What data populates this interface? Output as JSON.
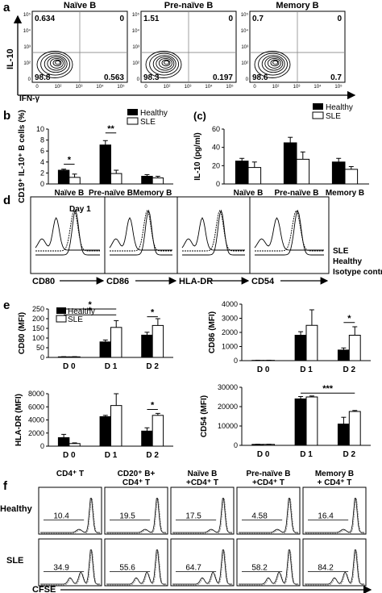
{
  "panel_letters": {
    "a": "a",
    "b": "b",
    "c": "(c)",
    "d": "d",
    "e": "e",
    "f": "f"
  },
  "panel_a": {
    "titles": [
      "Naïve B",
      "Pre-naïve B",
      "Memory B"
    ],
    "quadrants": [
      {
        "ul": "0.634",
        "ur": "0",
        "ll": "98.8",
        "lr": "0.563"
      },
      {
        "ul": "1.51",
        "ur": "0",
        "ll": "98.3",
        "lr": "0.197"
      },
      {
        "ul": "0.7",
        "ur": "0",
        "ll": "98.6",
        "lr": "0.7"
      }
    ],
    "y_label": "IL-10",
    "x_label": "IFN-γ",
    "y_ticks": [
      "10⁵",
      "10⁴",
      "10³",
      "10²",
      "0"
    ],
    "x_ticks": [
      "0",
      "10²",
      "10³",
      "10⁴",
      "10⁵"
    ]
  },
  "chart_data": [
    {
      "type": "bar",
      "panel": "b",
      "ylabel": "CD19⁺ IL-10⁺ B cells (%)",
      "categories": [
        "Naïve B",
        "Pre-naïve B",
        "Memory B"
      ],
      "ylim": [
        0,
        10
      ],
      "yticks": [
        "0",
        "2",
        "4",
        "6",
        "8",
        "10"
      ],
      "series": [
        {
          "name": "Healthy",
          "values": [
            2.5,
            7.1,
            1.4
          ],
          "errors": [
            0.2,
            0.8,
            0.3
          ],
          "color": "#000000"
        },
        {
          "name": "SLE",
          "values": [
            1.2,
            1.9,
            1.1
          ],
          "errors": [
            0.6,
            0.6,
            0.3
          ],
          "color": "#ffffff"
        }
      ],
      "significance": [
        "*",
        "**"
      ]
    },
    {
      "type": "bar",
      "panel": "c",
      "ylabel": "IL-10 (pg/ml)",
      "categories": [
        "Naïve B",
        "Pre-naïve B",
        "Memory B"
      ],
      "ylim": [
        0,
        60
      ],
      "yticks": [
        "0",
        "20",
        "40",
        "60"
      ],
      "series": [
        {
          "name": "Healthy",
          "values": [
            25,
            45,
            24
          ],
          "errors": [
            3,
            6,
            4
          ],
          "color": "#000000"
        },
        {
          "name": "SLE",
          "values": [
            18,
            27,
            16
          ],
          "errors": [
            6,
            8,
            3
          ],
          "color": "#ffffff"
        }
      ]
    },
    {
      "type": "bar",
      "panel": "e1",
      "ylabel": "CD80 (MFI)",
      "categories": [
        "D 0",
        "D 1",
        "D 2"
      ],
      "ylim": [
        0,
        250
      ],
      "yticks": [
        "0",
        "50",
        "100",
        "150",
        "200",
        "250"
      ],
      "series": [
        {
          "name": "Healthy",
          "values": [
            3,
            80,
            115
          ],
          "errors": [
            1,
            10,
            15
          ],
          "color": "#000000"
        },
        {
          "name": "SLE",
          "values": [
            3,
            155,
            165
          ],
          "errors": [
            1,
            35,
            35
          ],
          "color": "#ffffff"
        }
      ],
      "significance": [
        "*",
        "*",
        "*"
      ]
    },
    {
      "type": "bar",
      "panel": "e2",
      "ylabel": "CD86 (MFI)",
      "categories": [
        "D 0",
        "D 1",
        "D 2"
      ],
      "ylim": [
        0,
        4000
      ],
      "yticks": [
        "0",
        "1000",
        "2000",
        "3000",
        "4000"
      ],
      "series": [
        {
          "name": "Healthy",
          "values": [
            20,
            1800,
            750
          ],
          "errors": [
            10,
            250,
            150
          ],
          "color": "#000000"
        },
        {
          "name": "SLE",
          "values": [
            20,
            2500,
            1800
          ],
          "errors": [
            10,
            1100,
            600
          ],
          "color": "#ffffff"
        }
      ],
      "significance": [
        "*"
      ]
    },
    {
      "type": "bar",
      "panel": "e3",
      "ylabel": "HLA-DR (MFI)",
      "categories": [
        "D 0",
        "D 1",
        "D 2"
      ],
      "ylim": [
        0,
        8000
      ],
      "yticks": [
        "0",
        "2000",
        "4000",
        "6000",
        "8000"
      ],
      "series": [
        {
          "name": "Healthy",
          "values": [
            1300,
            4500,
            2300
          ],
          "errors": [
            500,
            200,
            500
          ],
          "color": "#000000"
        },
        {
          "name": "SLE",
          "values": [
            400,
            6200,
            4700
          ],
          "errors": [
            100,
            1800,
            300
          ],
          "color": "#ffffff"
        }
      ],
      "significance": [
        "*"
      ]
    },
    {
      "type": "bar",
      "panel": "e4",
      "ylabel": "CD54 (MFI)",
      "categories": [
        "D 0",
        "D 1",
        "D 2"
      ],
      "ylim": [
        0,
        30000
      ],
      "yticks": [
        "0",
        "10000",
        "20000",
        "30000"
      ],
      "series": [
        {
          "name": "Healthy",
          "values": [
            500,
            24000,
            11000
          ],
          "errors": [
            100,
            1200,
            3500
          ],
          "color": "#000000"
        },
        {
          "name": "SLE",
          "values": [
            500,
            25000,
            17500
          ],
          "errors": [
            100,
            500,
            500
          ],
          "color": "#ffffff"
        }
      ],
      "significance": [
        "***"
      ]
    }
  ],
  "panel_d": {
    "day_label": "Day 1",
    "markers": [
      "CD80",
      "CD86",
      "HLA-DR",
      "CD54"
    ],
    "legend": [
      "SLE",
      "Healthy",
      "Isotype control"
    ]
  },
  "panel_f": {
    "columns": [
      "CD4⁺ T",
      "CD20⁺ B+\nCD4⁺ T",
      "Naïve B\n+CD4⁺ T",
      "Pre-naïve B\n+CD4⁺ T",
      "Memory B\n+ CD4⁺ T"
    ],
    "rows": [
      "Healthy",
      "SLE"
    ],
    "values": [
      [
        "10.4",
        "19.5",
        "17.5",
        "4.58",
        "16.4"
      ],
      [
        "34.9",
        "55.6",
        "64.7",
        "58.2",
        "84.2"
      ]
    ],
    "x_label": "CFSE"
  }
}
